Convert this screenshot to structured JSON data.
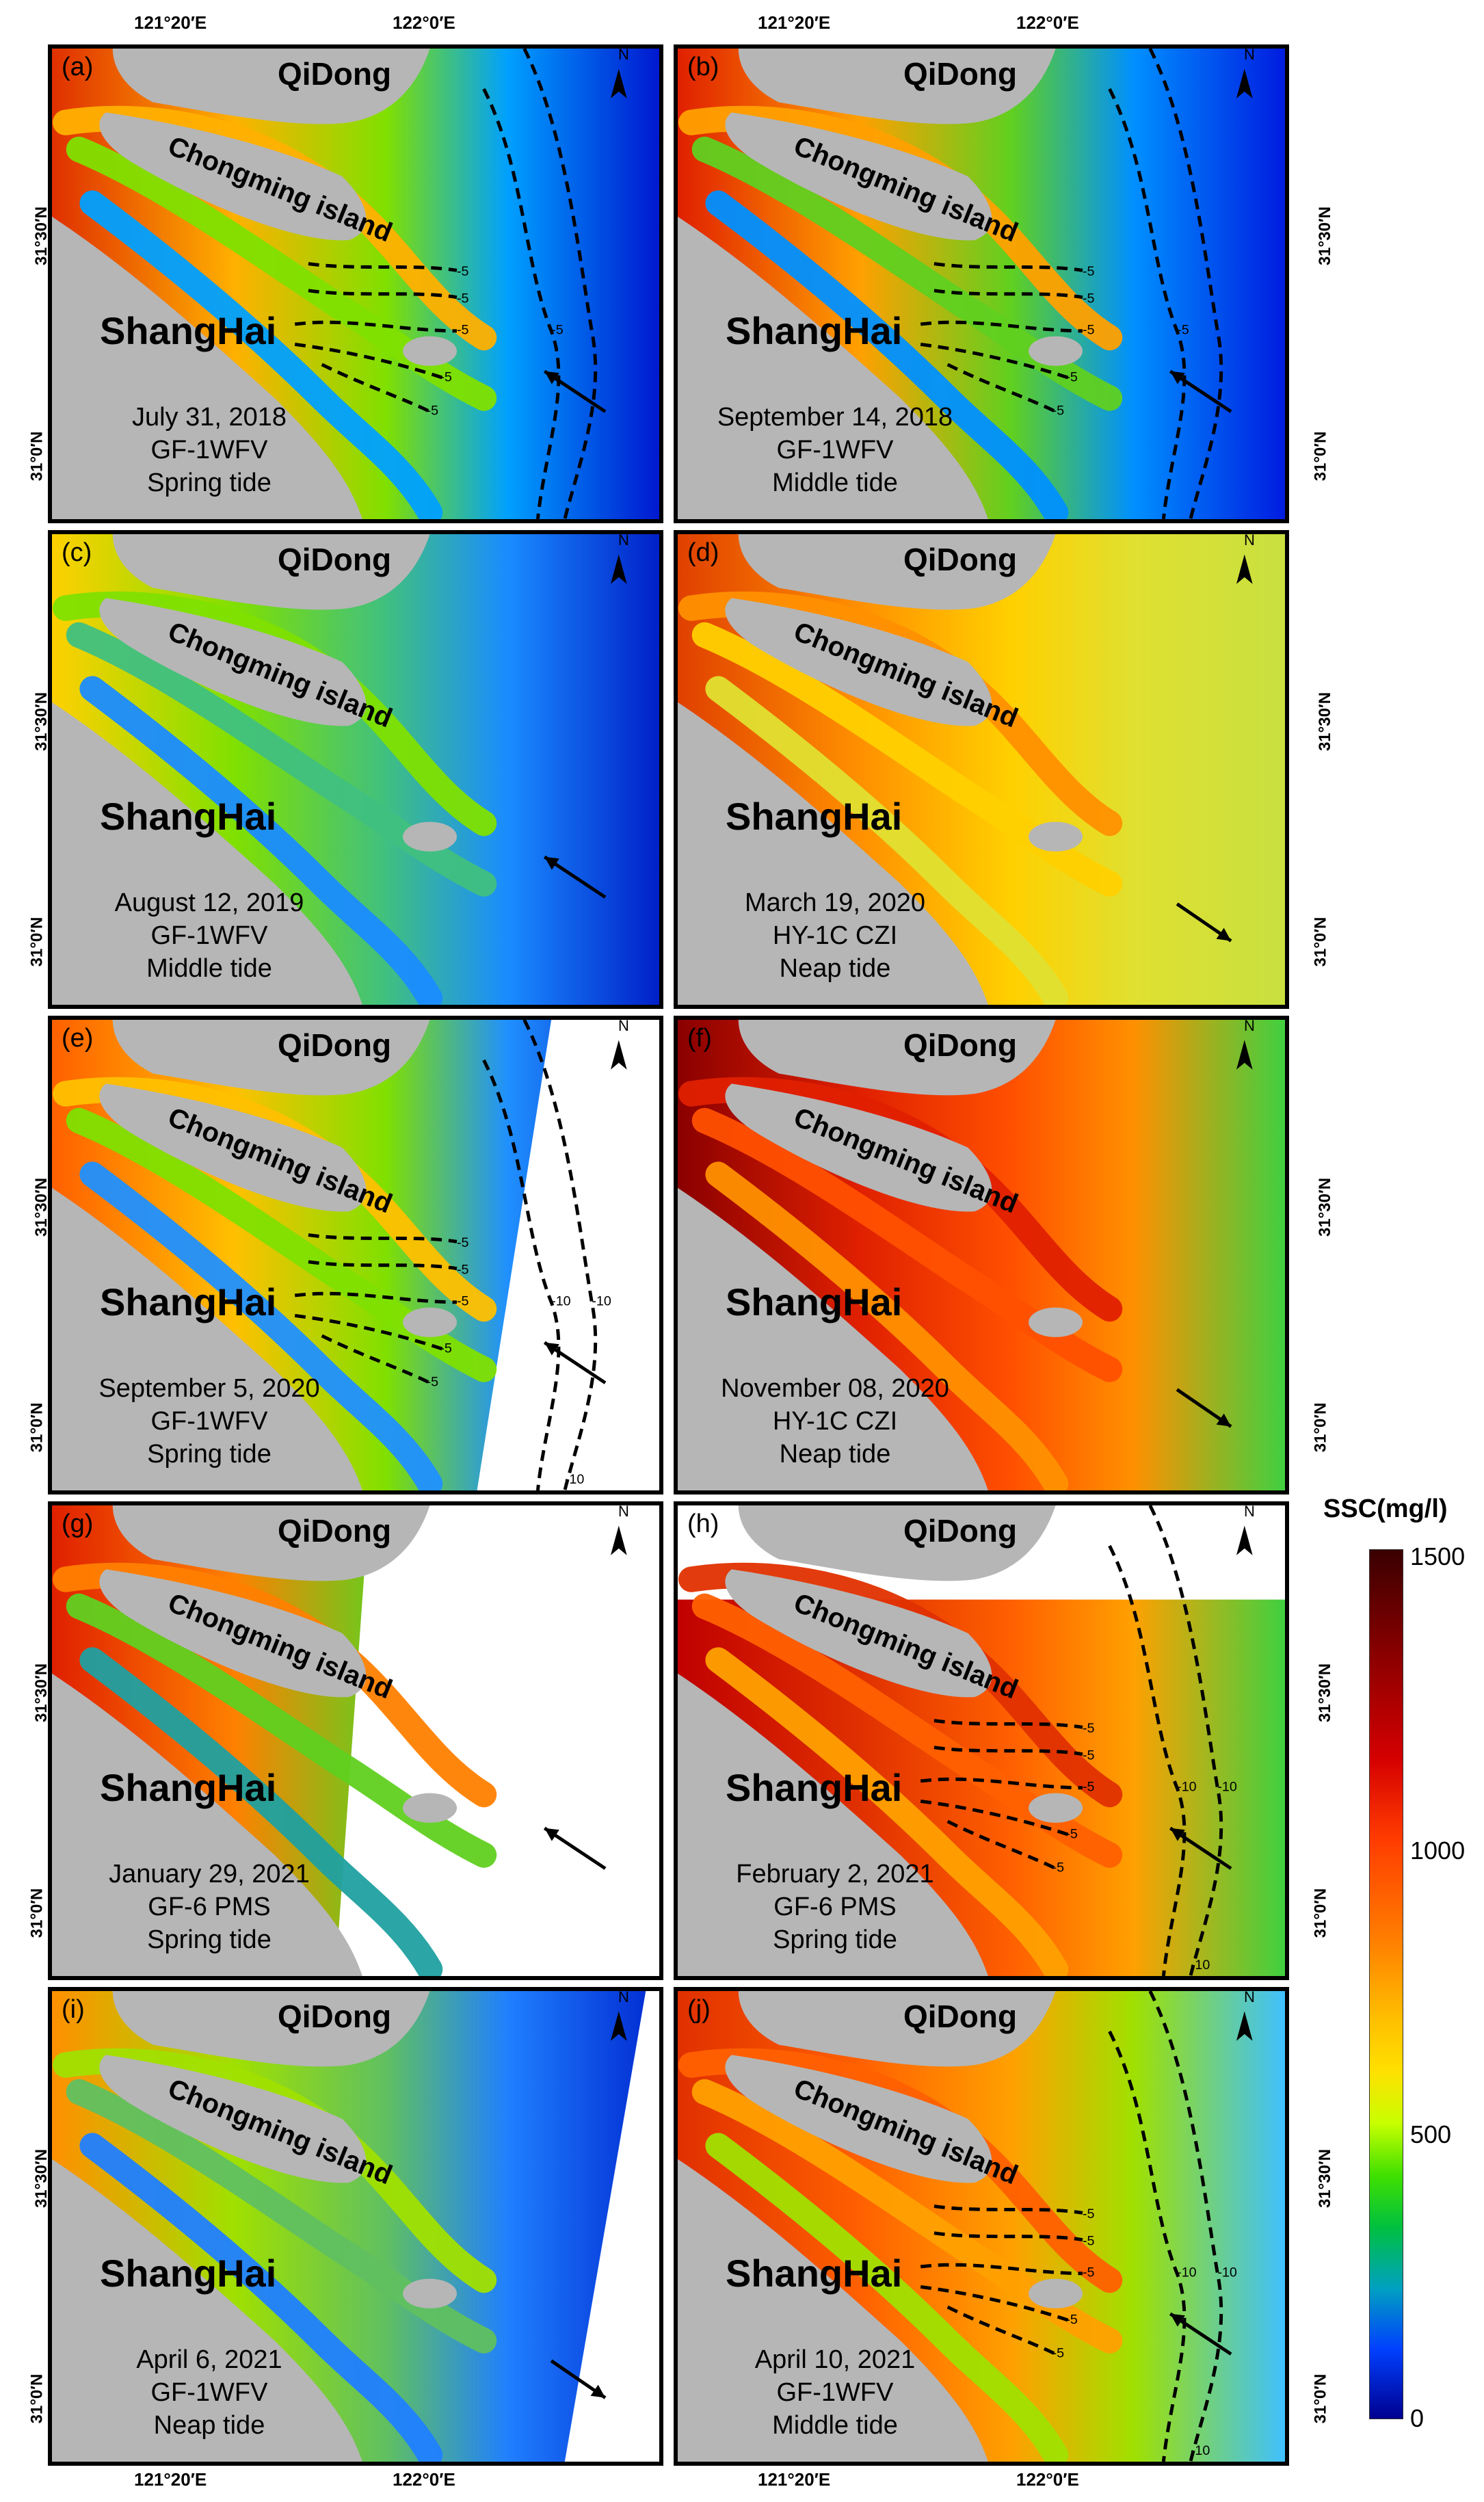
{
  "colors": {
    "land": "#b6b6b6",
    "ssc_high": "#3a0000",
    "ssc_mid": "#ffe000",
    "ssc_low": "#00008f"
  },
  "axes": {
    "lon_ticks": [
      "121°20′E",
      "122°0′E"
    ],
    "lat_ticks": [
      "31°30′N",
      "31°0′N"
    ]
  },
  "legend": {
    "title": "SSC(mg/l)",
    "ticks": [
      "1500",
      "1000",
      "500",
      "0"
    ]
  },
  "panels": [
    {
      "id": "a",
      "label": "(a)",
      "north": "N",
      "qidong": "QiDong",
      "island": "Chongming island",
      "city": "ShangHai",
      "date": "July 31, 2018",
      "sensor": "GF-1WFV",
      "tide": "Spring tide",
      "contours": [
        "-5",
        "-5",
        "-5",
        "-5",
        "-5",
        "-5"
      ]
    },
    {
      "id": "b",
      "label": "(b)",
      "north": "N",
      "qidong": "QiDong",
      "island": "Chongming island",
      "city": "ShangHai",
      "date": "September 14, 2018",
      "sensor": "GF-1WFV",
      "tide": "Middle tide",
      "contours": [
        "-5",
        "-5",
        "-5",
        "-5",
        "-5",
        "-5"
      ]
    },
    {
      "id": "c",
      "label": "(c)",
      "north": "N",
      "qidong": "QiDong",
      "island": "Chongming island",
      "city": "ShangHai",
      "date": "August 12, 2019",
      "sensor": "GF-1WFV",
      "tide": "Middle tide",
      "contours": []
    },
    {
      "id": "d",
      "label": "(d)",
      "north": "N",
      "qidong": "QiDong",
      "island": "Chongming island",
      "city": "ShangHai",
      "date": "March 19, 2020",
      "sensor": "HY-1C CZI",
      "tide": "Neap tide",
      "contours": []
    },
    {
      "id": "e",
      "label": "(e)",
      "north": "N",
      "qidong": "QiDong",
      "island": "Chongming island",
      "city": "ShangHai",
      "date": "September 5, 2020",
      "sensor": "GF-1WFV",
      "tide": "Spring tide",
      "contours": [
        "-5",
        "-5",
        "-5",
        "-5",
        "-5",
        "-10",
        "-10",
        "-10"
      ]
    },
    {
      "id": "f",
      "label": "(f)",
      "north": "N",
      "qidong": "QiDong",
      "island": "Chongming island",
      "city": "ShangHai",
      "date": "November 08, 2020",
      "sensor": "HY-1C CZI",
      "tide": "Neap tide",
      "contours": []
    },
    {
      "id": "g",
      "label": "(g)",
      "north": "N",
      "qidong": "QiDong",
      "island": "Chongming island",
      "city": "ShangHai",
      "date": "January 29, 2021",
      "sensor": "GF-6 PMS",
      "tide": "Spring tide",
      "contours": []
    },
    {
      "id": "h",
      "label": "(h)",
      "north": "N",
      "qidong": "QiDong",
      "island": "Chongming island",
      "city": "ShangHai",
      "date": "February 2, 2021",
      "sensor": "GF-6 PMS",
      "tide": "Spring tide",
      "contours": [
        "-5",
        "-5",
        "-5",
        "-5",
        "-5",
        "-10",
        "-10",
        "-10"
      ]
    },
    {
      "id": "i",
      "label": "(i)",
      "north": "N",
      "qidong": "QiDong",
      "island": "Chongming island",
      "city": "ShangHai",
      "date": "April 6, 2021",
      "sensor": "GF-1WFV",
      "tide": "Neap tide",
      "contours": []
    },
    {
      "id": "j",
      "label": "(j)",
      "north": "N",
      "qidong": "QiDong",
      "island": "Chongming island",
      "city": "ShangHai",
      "date": "April 10, 2021",
      "sensor": "GF-1WFV",
      "tide": "Middle tide",
      "contours": [
        "-5",
        "-5",
        "-5",
        "-5",
        "-5",
        "-10",
        "-10",
        "-10"
      ]
    }
  ]
}
